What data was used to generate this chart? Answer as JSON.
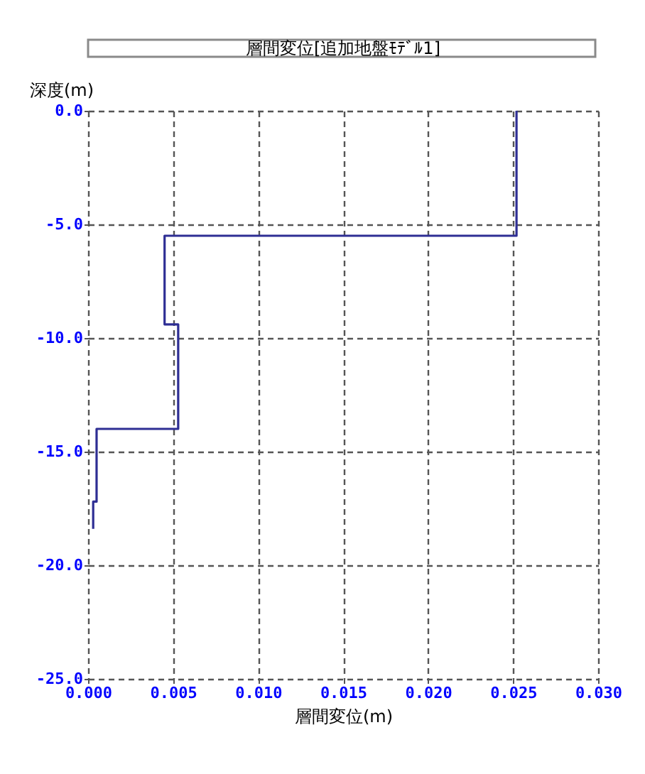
{
  "chart_data": {
    "type": "line",
    "title": "層間変位[追加地盤ﾓﾃﾞﾙ1]",
    "xlabel": "層間変位(m)",
    "ylabel": "深度(m)",
    "series": [
      {
        "color": "#2e2e94",
        "x": [
          0.0252,
          0.0252,
          0.0045,
          0.0045,
          0.0053,
          0.0053,
          0.0005,
          0.0005,
          0.0003,
          0.0003
        ],
        "values": [
          0.0,
          -5.5,
          -5.5,
          -9.4,
          -9.4,
          -14.0,
          -14.0,
          -17.2,
          -17.2,
          -18.4
        ]
      }
    ],
    "xlim": [
      0,
      0.03
    ],
    "ylim": [
      -25,
      0
    ],
    "xticks": [
      {
        "value": 0,
        "label": "0.000"
      },
      {
        "value": 0.005,
        "label": "0.005"
      },
      {
        "value": 0.01,
        "label": "0.010"
      },
      {
        "value": 0.015,
        "label": "0.015"
      },
      {
        "value": 0.02,
        "label": "0.020"
      },
      {
        "value": 0.025,
        "label": "0.025"
      },
      {
        "value": 0.03,
        "label": "0.030"
      }
    ],
    "yticks": [
      {
        "value": 0,
        "label": "0.0"
      },
      {
        "value": -5,
        "label": "-5.0"
      },
      {
        "value": -10,
        "label": "-10.0"
      },
      {
        "value": -15,
        "label": "-15.0"
      },
      {
        "value": -20,
        "label": "-20.0"
      },
      {
        "value": -25,
        "label": "-25.0"
      }
    ],
    "grid": true,
    "marker": "none",
    "line_style": "solid"
  }
}
